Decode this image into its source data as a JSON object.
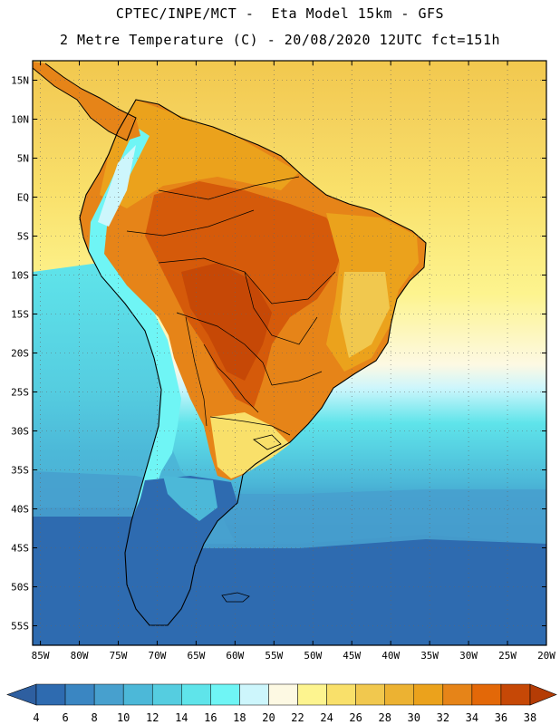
{
  "title": {
    "line1": "CPTEC/INPE/MCT -  Eta Model 15km - GFS",
    "line2": "2 Metre Temperature (C) - 20/08/2020 12UTC fct=151h"
  },
  "axes": {
    "lat_labels": [
      "15N",
      "10N",
      "5N",
      "EQ",
      "5S",
      "10S",
      "15S",
      "20S",
      "25S",
      "30S",
      "35S",
      "40S",
      "45S",
      "50S",
      "55S"
    ],
    "lat_values": [
      15,
      10,
      5,
      0,
      -5,
      -10,
      -15,
      -20,
      -25,
      -30,
      -35,
      -40,
      -45,
      -50,
      -55
    ],
    "lon_labels": [
      "85W",
      "80W",
      "75W",
      "70W",
      "65W",
      "60W",
      "55W",
      "50W",
      "45W",
      "40W",
      "35W",
      "30W",
      "25W",
      "20W"
    ],
    "lon_values": [
      -85,
      -80,
      -75,
      -70,
      -65,
      -60,
      -55,
      -50,
      -45,
      -40,
      -35,
      -30,
      -25,
      -20
    ],
    "lat_range": [
      -57.5,
      17.5
    ],
    "lon_range": [
      -86,
      -20
    ]
  },
  "colorbar": {
    "labels": [
      "4",
      "6",
      "8",
      "10",
      "12",
      "14",
      "16",
      "18",
      "20",
      "22",
      "24",
      "26",
      "28",
      "30",
      "32",
      "34",
      "36",
      "38"
    ],
    "colors": [
      "#2e6bb0",
      "#3a86c2",
      "#47a0ce",
      "#4cb8d8",
      "#55cde0",
      "#5fe4ea",
      "#6ff5f5",
      "#cdf6fc",
      "#fdf9e3",
      "#fdf48f",
      "#f9e06a",
      "#f1c84e",
      "#ecb232",
      "#eba21c",
      "#e68418",
      "#e36808",
      "#c64806"
    ],
    "low_arrow_color": "#2e5fa0",
    "high_arrow_color": "#b43c05"
  },
  "colors": {
    "ocean_warm": "#f9e06a",
    "ocean_cool": "#4cb8d8",
    "ocean_cold": "#2e6bb0",
    "land_hot": "#c64806",
    "land_warm": "#eba21c",
    "andes": "#6ff5f5"
  }
}
